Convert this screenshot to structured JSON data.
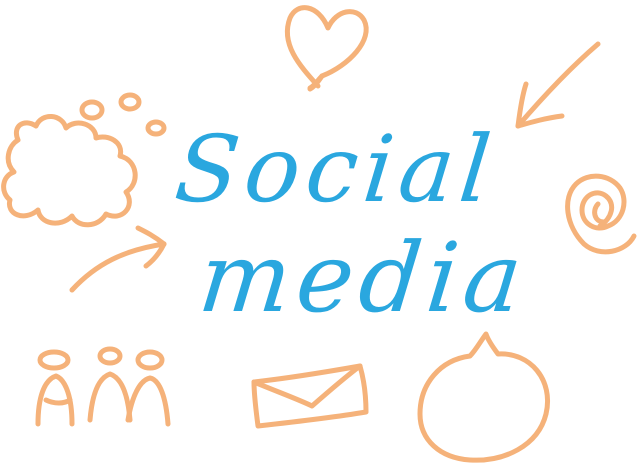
{
  "text": {
    "line1": "Social",
    "line2": "media"
  },
  "colors": {
    "lettering": "#2aa7df",
    "doodle": "#f5b27a",
    "background": "#ffffff"
  },
  "icons": [
    "heart-icon",
    "arrow-down-left-icon",
    "thought-cloud-icon",
    "at-sign-icon",
    "arrow-up-right-icon",
    "people-group-icon",
    "envelope-icon",
    "speech-bubble-icon"
  ]
}
